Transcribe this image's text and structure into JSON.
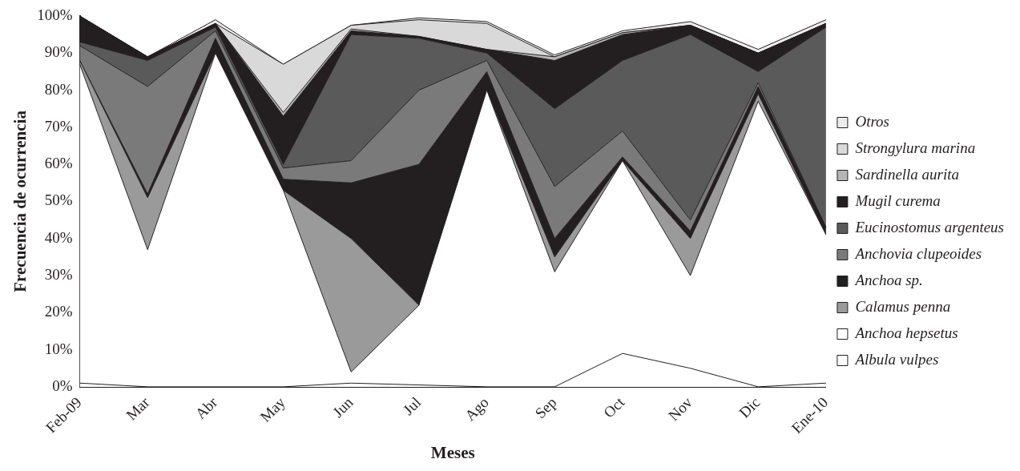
{
  "chart_data": {
    "type": "area",
    "stacked": true,
    "xlabel": "Meses",
    "ylabel": "Frecuencia de ocurrencia",
    "categories": [
      "Feb-09",
      "Mar",
      "Abr",
      "May",
      "Jun",
      "Jul",
      "Ago",
      "Sep",
      "Oct",
      "Nov",
      "Dic",
      "Ene-10"
    ],
    "ylim": [
      0,
      100
    ],
    "yticks": [
      {
        "value": 0,
        "label": "0%"
      },
      {
        "value": 10,
        "label": "10%"
      },
      {
        "value": 20,
        "label": "20%"
      },
      {
        "value": 30,
        "label": "30%"
      },
      {
        "value": 40,
        "label": "40%"
      },
      {
        "value": 50,
        "label": "50%"
      },
      {
        "value": 60,
        "label": "60%"
      },
      {
        "value": 70,
        "label": "70%"
      },
      {
        "value": 80,
        "label": "80%"
      },
      {
        "value": 90,
        "label": "90%"
      },
      {
        "value": 100,
        "label": "100%"
      }
    ],
    "grid": false,
    "legend": "right",
    "series": [
      {
        "name": "Albula vulpes",
        "color": "#ffffff",
        "values": [
          1,
          0,
          0,
          0,
          1,
          0.5,
          0,
          0,
          9,
          5,
          0,
          1
        ]
      },
      {
        "name": "Anchoa hepsetus",
        "color": "#ffffff",
        "values": [
          86,
          37,
          90,
          53,
          3,
          21.5,
          80,
          31,
          52,
          25,
          77,
          40
        ]
      },
      {
        "name": "Calamus penna",
        "color": "#9a9a9a",
        "values": [
          1,
          14,
          0,
          0,
          36,
          0,
          0,
          4,
          0,
          10,
          2,
          0
        ]
      },
      {
        "name": "Anchoa sp.",
        "color": "#231f20",
        "values": [
          0,
          1,
          4,
          3,
          15,
          38,
          5,
          5,
          1,
          2,
          2,
          2
        ]
      },
      {
        "name": "Anchovia clupeoides",
        "color": "#7a7a7a",
        "values": [
          4,
          29,
          2,
          3,
          6,
          20,
          3,
          14,
          7,
          3,
          1,
          0
        ]
      },
      {
        "name": "Eucinostomus argenteus",
        "color": "#5a5a5a",
        "values": [
          1,
          7,
          1,
          1,
          34,
          14,
          2,
          21,
          19,
          50,
          3,
          54
        ]
      },
      {
        "name": "Mugil curema",
        "color": "#231f20",
        "values": [
          7,
          1,
          1,
          13,
          1,
          0.5,
          1,
          13,
          7,
          2.5,
          5,
          1
        ]
      },
      {
        "name": "Sardinella aurita",
        "color": "#b5b5b5",
        "values": [
          0,
          0,
          0,
          1,
          0.5,
          0,
          0,
          1,
          0.5,
          0,
          0,
          0
        ]
      },
      {
        "name": "Strongylura marina",
        "color": "#d9d9d9",
        "values": [
          0,
          0,
          0,
          13,
          1,
          4.5,
          7,
          0,
          0,
          0,
          0,
          0
        ]
      },
      {
        "name": "Otros",
        "color": "#ededed",
        "values": [
          0,
          0,
          1,
          0,
          0,
          0.5,
          0.5,
          0.5,
          0.5,
          1,
          1,
          1
        ]
      }
    ]
  }
}
